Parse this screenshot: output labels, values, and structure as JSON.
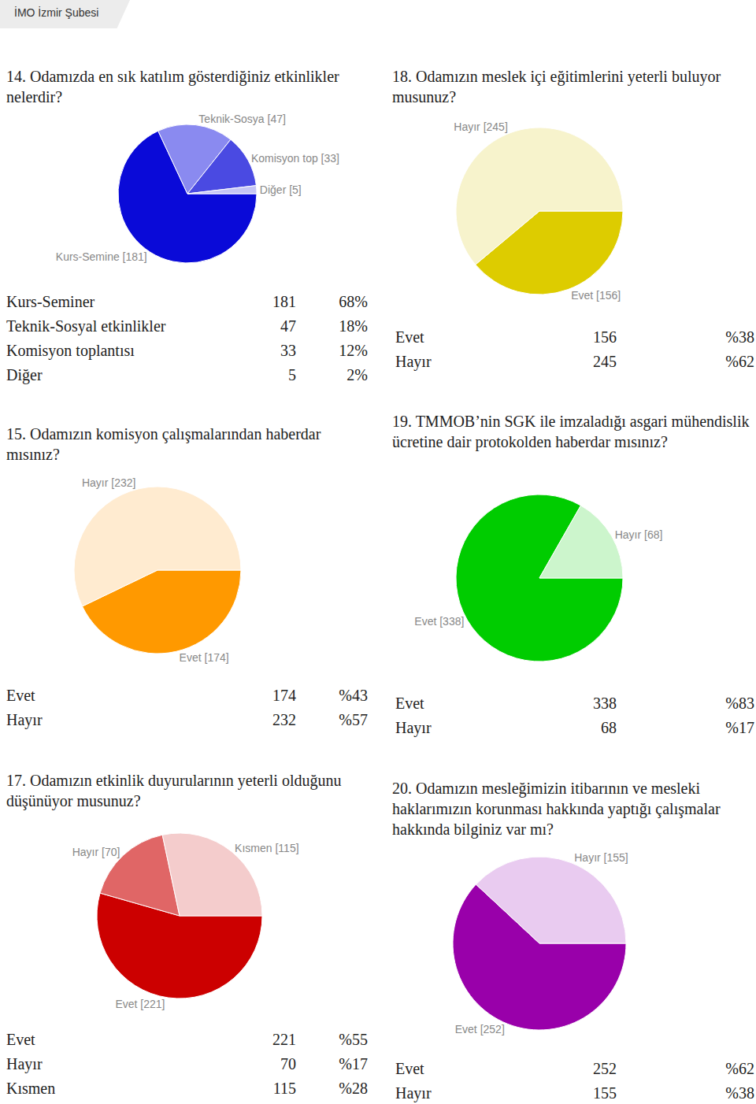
{
  "header": "İMO İzmir Şubesi",
  "chart_data": [
    {
      "type": "pie",
      "title": "14. Odamızda en sık katılım gösterdiğiniz etkinlikler nelerdir?",
      "categories": [
        "Kurs-Seminer",
        "Teknik-Sosyal etkinlikler",
        "Komisyon toplantısı",
        "Diğer"
      ],
      "values": [
        181,
        47,
        33,
        5
      ],
      "value_labels": [
        "Kurs-Semine [181]",
        "Teknik-Sosya [47]",
        "Komisyon top [33]",
        "Diğer [5]"
      ],
      "percent_labels": [
        "68%",
        "18%",
        "12%",
        "2%"
      ],
      "colors": [
        "#0a0ad8",
        "#8a8af0",
        "#4a4ae2",
        "#c5c5f5"
      ],
      "data_labels": true
    },
    {
      "type": "pie",
      "title": "15. Odamızın komisyon çalışmalarından haberdar mısınız?",
      "categories": [
        "Evet",
        "Hayır"
      ],
      "values": [
        174,
        232
      ],
      "value_labels": [
        "Evet [174]",
        "Hayır [232]"
      ],
      "percent_labels": [
        "%43",
        "%57"
      ],
      "colors": [
        "#ff9900",
        "#ffebd0"
      ],
      "data_labels": true
    },
    {
      "type": "pie",
      "title": "17. Odamızın etkinlik duyurularının yeterli olduğunu düşünüyor musunuz?",
      "categories": [
        "Evet",
        "Hayır",
        "Kısmen"
      ],
      "values": [
        221,
        70,
        115
      ],
      "value_labels": [
        "Evet [221]",
        "Hayır [70]",
        "Kısmen [115]"
      ],
      "percent_labels": [
        "%55",
        "%17",
        "%28"
      ],
      "colors": [
        "#cc0000",
        "#e06666",
        "#f4cccc"
      ],
      "data_labels": true
    },
    {
      "type": "pie",
      "title": "18. Odamızın meslek içi eğitimlerini yeterli buluyor musunuz?",
      "categories": [
        "Evet",
        "Hayır"
      ],
      "values": [
        156,
        245
      ],
      "value_labels": [
        "Evet [156]",
        "Hayır [245]"
      ],
      "percent_labels": [
        "%38",
        "%62"
      ],
      "colors": [
        "#ddcc00",
        "#f7f3cc"
      ],
      "data_labels": true
    },
    {
      "type": "pie",
      "title": "19. TMMOB’nin SGK ile imzaladığı asgari mühendislik ücretine dair protokolden haberdar mısınız?",
      "categories": [
        "Evet",
        "Hayır"
      ],
      "values": [
        338,
        68
      ],
      "value_labels": [
        "Evet [338]",
        "Hayır [68]"
      ],
      "percent_labels": [
        "%83",
        "%17"
      ],
      "colors": [
        "#00cc00",
        "#ccf5cc"
      ],
      "data_labels": true
    },
    {
      "type": "pie",
      "title": "20. Odamızın mesleğimizin itibarının ve mesleki haklarımızın korunması hakkında yaptığı çalışmalar hakkında bilginiz var mı?",
      "categories": [
        "Evet",
        "Hayır"
      ],
      "values": [
        252,
        155
      ],
      "value_labels": [
        "Evet [252]",
        "Hayır [155]"
      ],
      "percent_labels": [
        "%62",
        "%38"
      ],
      "colors": [
        "#9900aa",
        "#e9cbf0"
      ],
      "data_labels": true
    }
  ]
}
